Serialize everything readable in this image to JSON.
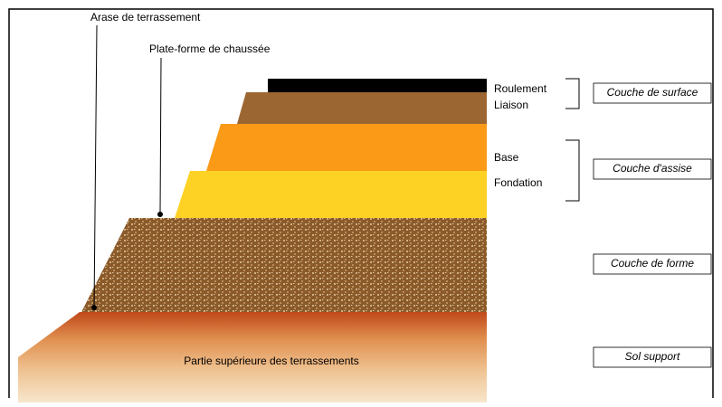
{
  "annotations": {
    "arase": "Arase de terrassement",
    "plateforme": "Plate-forme de chaussée"
  },
  "layers": {
    "roulement": "Roulement",
    "liaison": "Liaison",
    "base": "Base",
    "fondation": "Fondation",
    "terrassements": "Partie supérieure des terrassements"
  },
  "groups": {
    "surface": "Couche de surface",
    "assise": "Couche d'assise",
    "forme": "Couche de forme",
    "sol": "Sol support"
  }
}
